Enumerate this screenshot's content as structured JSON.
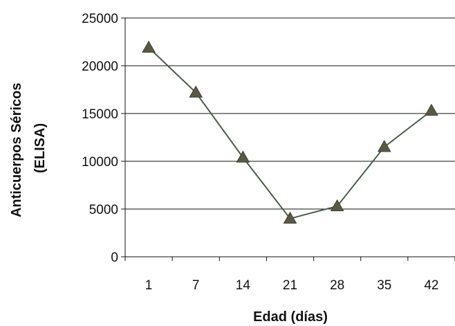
{
  "chart_data": {
    "type": "line",
    "title": "",
    "xlabel": "Edad (días)",
    "ylabel_lines": [
      "Anticuerpos Séricos",
      "(ELISA)"
    ],
    "categories": [
      "1",
      "7",
      "14",
      "21",
      "28",
      "35",
      "42"
    ],
    "series": [
      {
        "values": [
          21900,
          17200,
          10400,
          4000,
          5300,
          11500,
          15300
        ]
      }
    ],
    "ylim": [
      0,
      25000
    ],
    "yticks": [
      0,
      5000,
      10000,
      15000,
      20000,
      25000
    ],
    "grid": "horizontal",
    "legend": "none",
    "colors": {
      "line": "#4a5a4a",
      "marker": "#5a5a44",
      "grid": "#111111",
      "axis": "#111111"
    },
    "marker": "triangle"
  }
}
